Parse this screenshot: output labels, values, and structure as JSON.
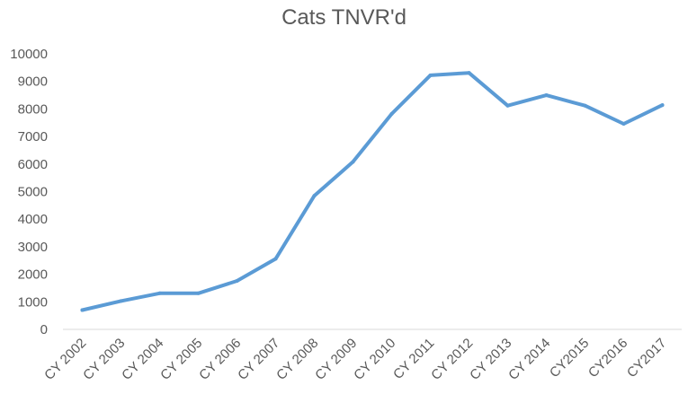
{
  "chart_data": {
    "type": "line",
    "title": "Cats TNVR'd",
    "xlabel": "",
    "ylabel": "",
    "categories": [
      "CY 2002",
      "CY 2003",
      "CY 2004",
      "CY 2005",
      "CY 2006",
      "CY 2007",
      "CY 2008",
      "CY 2009",
      "CY 2010",
      "CY 2011",
      "CY 2012",
      "CY 2013",
      "CY 2014",
      "CY2015",
      "CY2016",
      "CY2017"
    ],
    "series": [
      {
        "values": [
          700,
          1030,
          1310,
          1310,
          1760,
          2560,
          4850,
          6080,
          7820,
          9220,
          9310,
          8120,
          8500,
          8120,
          7460,
          8140
        ]
      }
    ],
    "yticks": [
      "0",
      "1000",
      "2000",
      "3000",
      "4000",
      "5000",
      "6000",
      "7000",
      "8000",
      "9000",
      "10000"
    ],
    "ylim": [
      0,
      10000
    ],
    "grid": false,
    "legend": "none",
    "line_color": "#5B9BD5"
  }
}
